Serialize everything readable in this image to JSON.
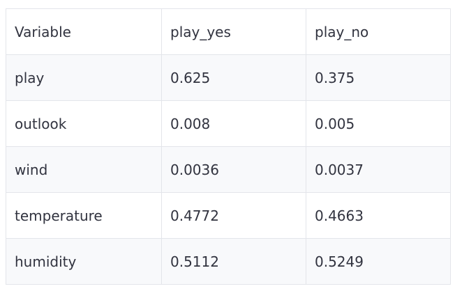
{
  "table": {
    "header": [
      "Variable",
      "play_yes",
      "play_no"
    ],
    "rows": [
      [
        "play",
        "0.625",
        "0.375"
      ],
      [
        "outlook",
        "0.008",
        "0.005"
      ],
      [
        "wind",
        "0.0036",
        "0.0037"
      ],
      [
        "temperature",
        "0.4772",
        "0.4663"
      ],
      [
        "humidity",
        "0.5112",
        "0.5249"
      ]
    ]
  }
}
